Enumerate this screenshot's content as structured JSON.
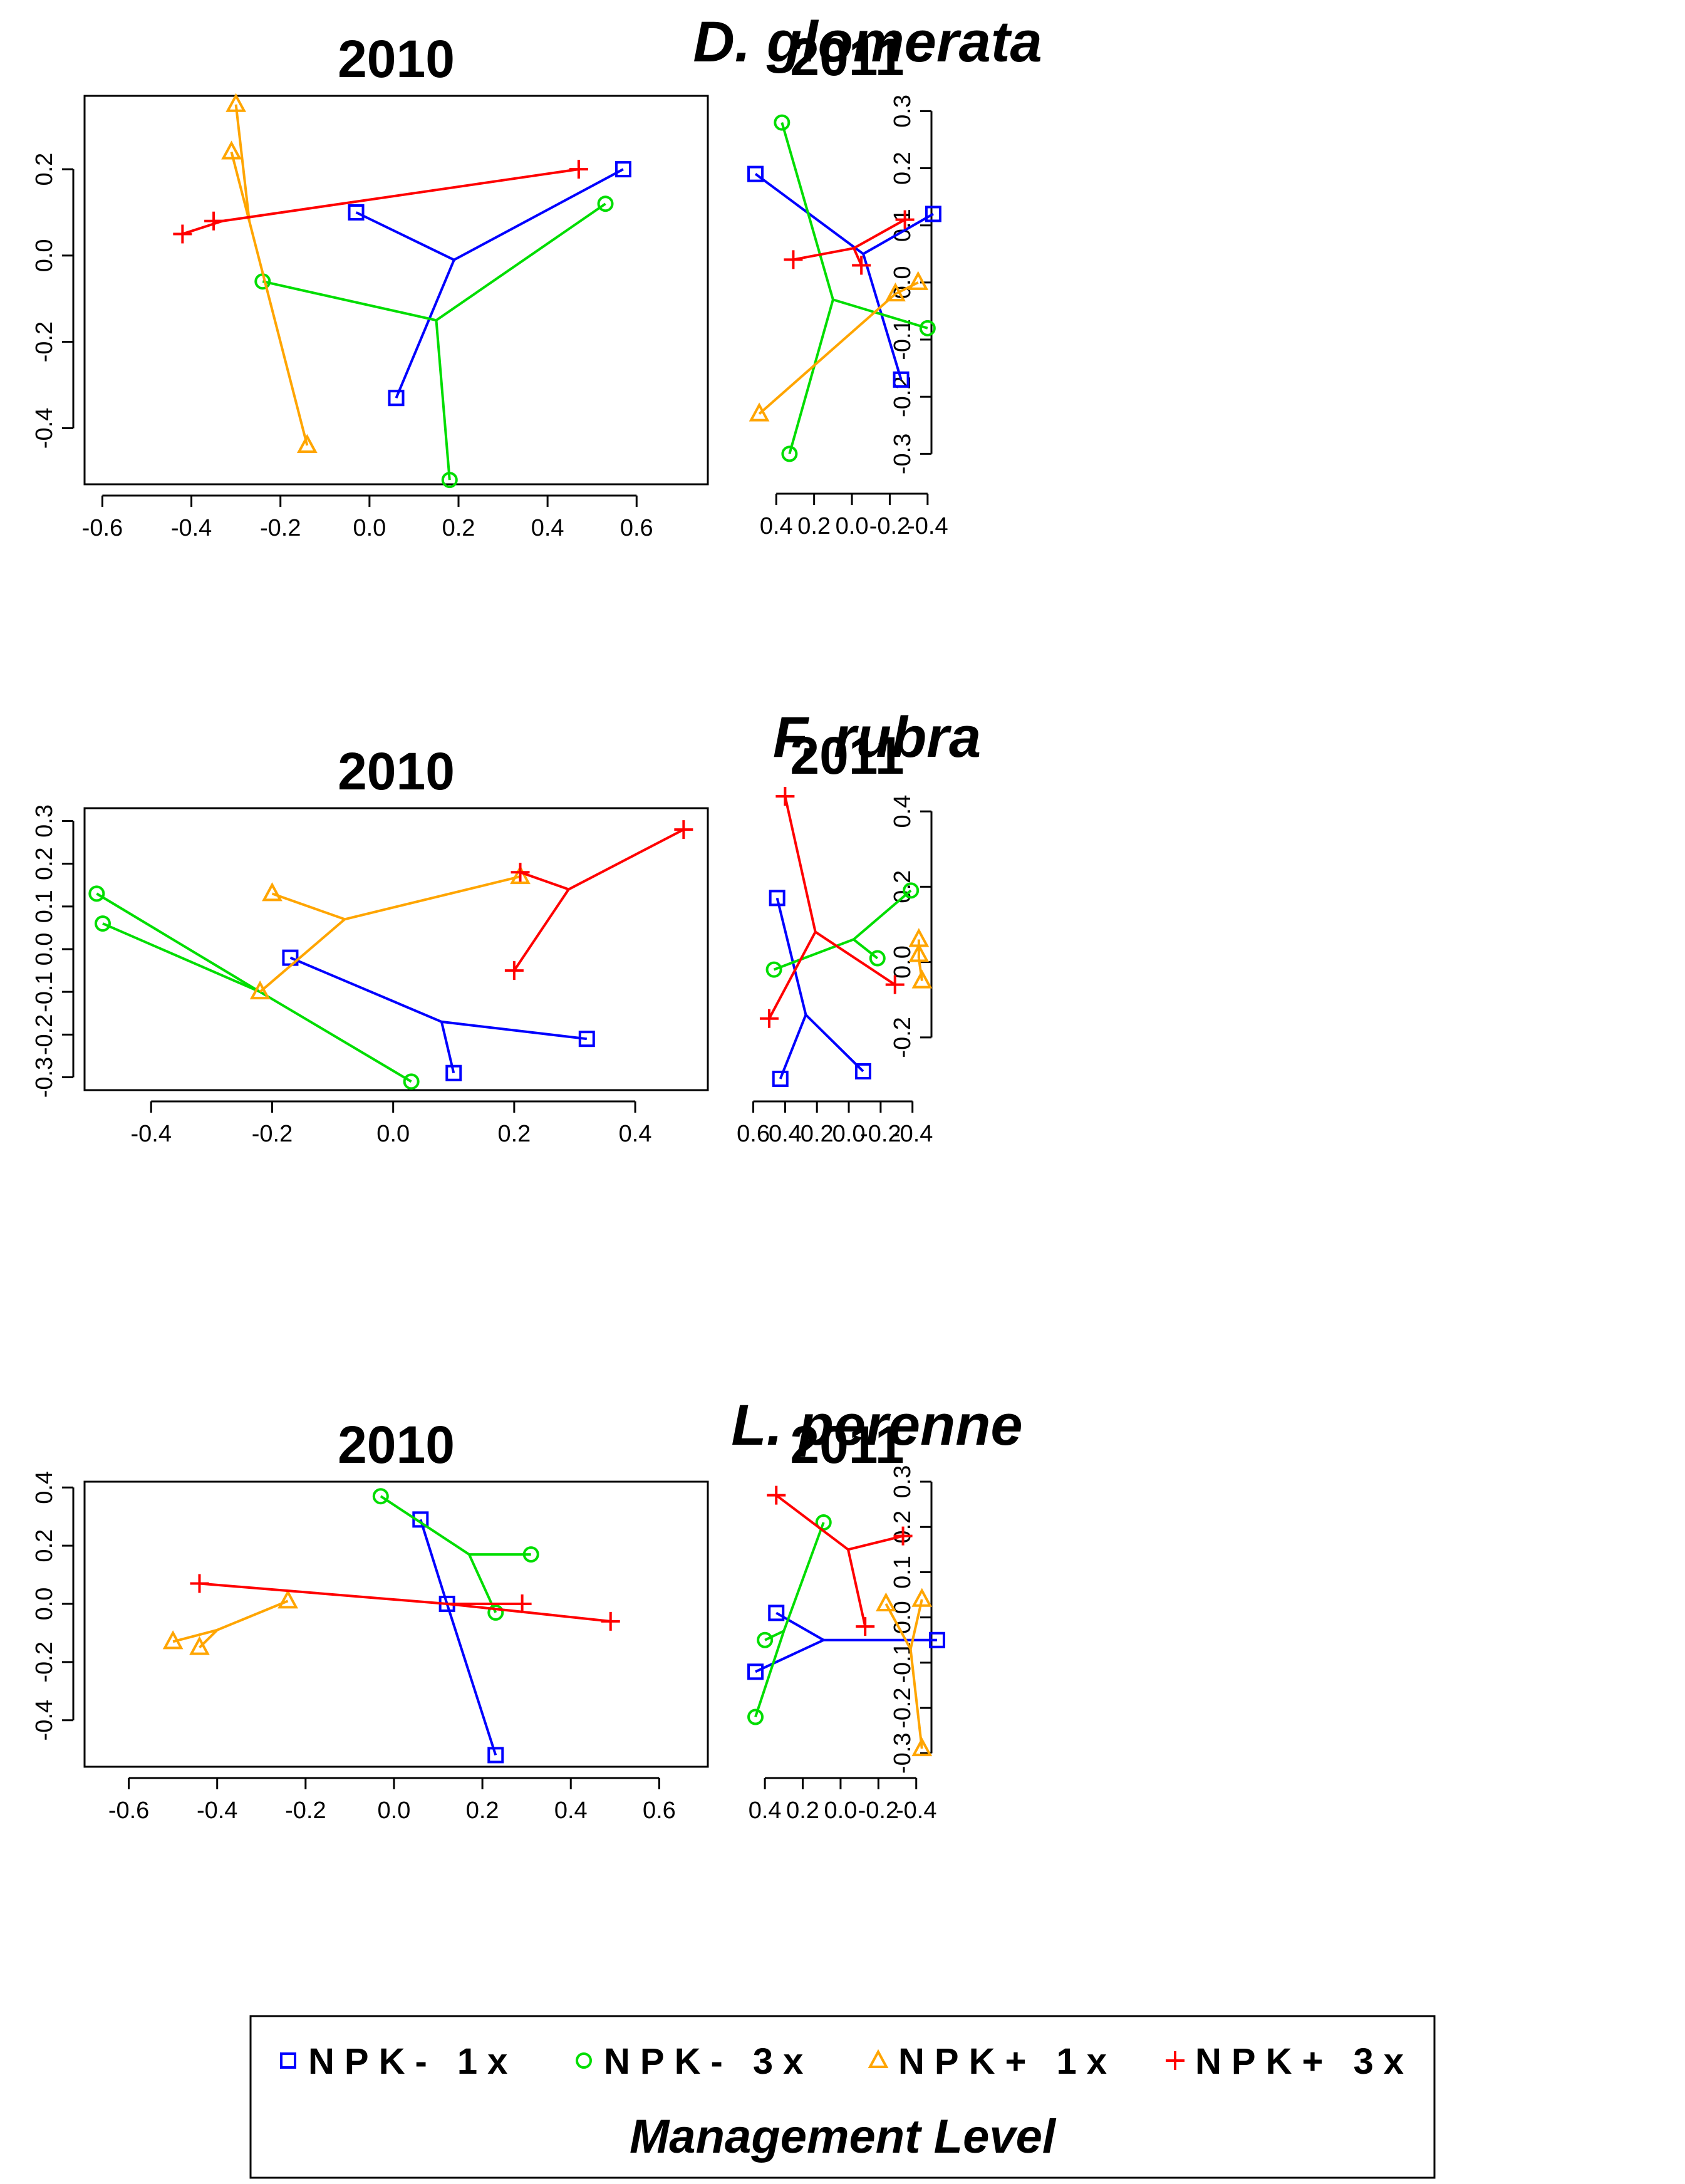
{
  "figure": {
    "species_titles": [
      "D. glomerata",
      "F. rubra",
      "L. perenne"
    ],
    "legend": {
      "title": "Management Level",
      "entries": [
        {
          "label": "NPK- 1x",
          "color": "#0000ff",
          "marker": "square"
        },
        {
          "label": "NPK- 3x",
          "color": "#00dd00",
          "marker": "circle"
        },
        {
          "label": "NPK+ 1x",
          "color": "#ffa500",
          "marker": "triangle"
        },
        {
          "label": "NPK+ 3x",
          "color": "#ff0000",
          "marker": "plus"
        }
      ]
    }
  },
  "chart_data": [
    {
      "type": "scatter",
      "title": "2010",
      "species": "D. glomerata",
      "xlim": [
        -0.64,
        0.76
      ],
      "ylim": [
        -0.53,
        0.37
      ],
      "xticks": [
        -0.6,
        -0.4,
        -0.2,
        0.0,
        0.2,
        0.4,
        0.6
      ],
      "yticks": [
        -0.4,
        -0.2,
        0.0,
        0.2
      ],
      "series": [
        {
          "name": "NPK- 1x",
          "centroid": [
            0.19,
            -0.01
          ],
          "points": [
            [
              -0.03,
              0.1
            ],
            [
              0.57,
              0.2
            ],
            [
              0.06,
              -0.33
            ]
          ]
        },
        {
          "name": "NPK- 3x",
          "centroid": [
            0.15,
            -0.15
          ],
          "points": [
            [
              -0.24,
              -0.06
            ],
            [
              0.53,
              0.12
            ],
            [
              0.18,
              -0.52
            ]
          ]
        },
        {
          "name": "NPK+ 1x",
          "centroid": [
            -0.27,
            0.08
          ],
          "points": [
            [
              -0.3,
              0.35
            ],
            [
              -0.31,
              0.24
            ],
            [
              -0.14,
              -0.44
            ]
          ]
        },
        {
          "name": "NPK+ 3x",
          "centroid": [
            -0.33,
            0.08
          ],
          "points": [
            [
              -0.42,
              0.05
            ],
            [
              -0.35,
              0.08
            ],
            [
              0.47,
              0.2
            ]
          ]
        }
      ]
    },
    {
      "type": "scatter",
      "title": "2011",
      "species": "D. glomerata",
      "xlim": [
        -0.48,
        0.53
      ],
      "ylim": [
        -0.35,
        0.33
      ],
      "xticks": [
        -0.4,
        -0.2,
        0.0,
        0.2,
        0.4
      ],
      "yticks": [
        -0.3,
        -0.2,
        -0.1,
        0.0,
        0.1,
        0.2,
        0.3
      ],
      "series": [
        {
          "name": "NPK- 1x",
          "centroid": [
            -0.06,
            0.05
          ],
          "points": [
            [
              -0.43,
              0.12
            ],
            [
              0.51,
              0.19
            ],
            [
              -0.26,
              -0.17
            ]
          ]
        },
        {
          "name": "NPK- 3x",
          "centroid": [
            0.1,
            -0.03
          ],
          "points": [
            [
              -0.4,
              -0.08
            ],
            [
              0.37,
              0.28
            ],
            [
              0.33,
              -0.3
            ]
          ]
        },
        {
          "name": "NPK+ 1x",
          "centroid": [
            -0.23,
            -0.02
          ],
          "points": [
            [
              -0.35,
              0.0
            ],
            [
              -0.23,
              -0.02
            ],
            [
              0.49,
              -0.23
            ]
          ]
        },
        {
          "name": "NPK+ 3x",
          "centroid": [
            -0.01,
            0.06
          ],
          "points": [
            [
              -0.28,
              0.11
            ],
            [
              -0.05,
              0.03
            ],
            [
              0.31,
              0.04
            ]
          ]
        }
      ]
    },
    {
      "type": "scatter",
      "title": "2010",
      "species": "F. rubra",
      "xlim": [
        -0.51,
        0.52
      ],
      "ylim": [
        -0.33,
        0.33
      ],
      "xticks": [
        -0.4,
        -0.2,
        0.0,
        0.2,
        0.4
      ],
      "yticks": [
        -0.3,
        -0.2,
        -0.1,
        0.0,
        0.1,
        0.2,
        0.3
      ],
      "series": [
        {
          "name": "NPK- 1x",
          "centroid": [
            0.08,
            -0.17
          ],
          "points": [
            [
              -0.17,
              -0.02
            ],
            [
              0.32,
              -0.21
            ],
            [
              0.1,
              -0.29
            ]
          ]
        },
        {
          "name": "NPK- 3x",
          "centroid": [
            -0.22,
            -0.1
          ],
          "points": [
            [
              -0.49,
              0.13
            ],
            [
              -0.48,
              0.06
            ],
            [
              0.03,
              -0.31
            ]
          ]
        },
        {
          "name": "NPK+ 1x",
          "centroid": [
            -0.08,
            0.07
          ],
          "points": [
            [
              -0.2,
              0.13
            ],
            [
              -0.22,
              -0.1
            ],
            [
              0.21,
              0.17
            ]
          ]
        },
        {
          "name": "NPK+ 3x",
          "centroid": [
            0.29,
            0.14
          ],
          "points": [
            [
              0.48,
              0.28
            ],
            [
              0.21,
              0.18
            ],
            [
              0.2,
              -0.05
            ]
          ]
        }
      ]
    },
    {
      "type": "scatter",
      "title": "2011",
      "species": "F. rubra",
      "xlim": [
        -0.59,
        0.61
      ],
      "ylim": [
        -0.34,
        0.45
      ],
      "xticks": [
        -0.4,
        -0.2,
        0.0,
        0.2,
        0.4,
        0.6
      ],
      "yticks": [
        -0.2,
        0.0,
        0.2,
        0.4
      ],
      "series": [
        {
          "name": "NPK- 1x",
          "centroid": [
            0.27,
            -0.14
          ],
          "points": [
            [
              0.45,
              0.17
            ],
            [
              -0.09,
              -0.29
            ],
            [
              0.43,
              -0.31
            ]
          ]
        },
        {
          "name": "NPK- 3x",
          "centroid": [
            -0.03,
            0.06
          ],
          "points": [
            [
              -0.39,
              0.19
            ],
            [
              -0.18,
              0.01
            ],
            [
              0.47,
              -0.02
            ]
          ]
        },
        {
          "name": "NPK+ 1x",
          "centroid": [
            -0.44,
            0.01
          ],
          "points": [
            [
              -0.44,
              0.06
            ],
            [
              -0.44,
              0.02
            ],
            [
              -0.46,
              -0.05
            ]
          ]
        },
        {
          "name": "NPK+ 3x",
          "centroid": [
            0.21,
            0.08
          ],
          "points": [
            [
              0.4,
              0.44
            ],
            [
              -0.29,
              -0.06
            ],
            [
              0.5,
              -0.15
            ]
          ]
        }
      ]
    },
    {
      "type": "scatter",
      "title": "2010",
      "species": "L. perenne",
      "xlim": [
        -0.7,
        0.71
      ],
      "ylim": [
        -0.56,
        0.42
      ],
      "xticks": [
        -0.6,
        -0.4,
        -0.2,
        0.0,
        0.2,
        0.4,
        0.6
      ],
      "yticks": [
        -0.4,
        -0.2,
        0.0,
        0.2,
        0.4
      ],
      "series": [
        {
          "name": "NPK- 1x",
          "centroid": [
            0.12,
            0.0
          ],
          "points": [
            [
              0.06,
              0.29
            ],
            [
              0.23,
              -0.52
            ],
            [
              0.12,
              0.0
            ]
          ]
        },
        {
          "name": "NPK- 3x",
          "centroid": [
            0.17,
            0.17
          ],
          "points": [
            [
              -0.03,
              0.37
            ],
            [
              0.31,
              0.17
            ],
            [
              0.23,
              -0.03
            ]
          ]
        },
        {
          "name": "NPK+ 1x",
          "centroid": [
            -0.4,
            -0.09
          ],
          "points": [
            [
              -0.5,
              -0.13
            ],
            [
              -0.44,
              -0.15
            ],
            [
              -0.24,
              0.01
            ]
          ]
        },
        {
          "name": "NPK+ 3x",
          "centroid": [
            0.12,
            0.0
          ],
          "points": [
            [
              -0.44,
              0.07
            ],
            [
              0.29,
              0.0
            ],
            [
              0.49,
              -0.06
            ]
          ]
        }
      ]
    },
    {
      "type": "scatter",
      "title": "2011",
      "species": "L. perenne",
      "xlim": [
        -0.54,
        0.47
      ],
      "ylim": [
        -0.33,
        0.3
      ],
      "xticks": [
        -0.4,
        -0.2,
        0.0,
        0.2,
        0.4
      ],
      "yticks": [
        -0.3,
        -0.2,
        -0.1,
        0.0,
        0.1,
        0.2,
        0.3
      ],
      "series": [
        {
          "name": "NPK- 1x",
          "centroid": [
            0.09,
            -0.05
          ],
          "points": [
            [
              -0.51,
              -0.05
            ],
            [
              0.34,
              0.01
            ],
            [
              0.45,
              -0.12
            ]
          ]
        },
        {
          "name": "NPK- 3x",
          "centroid": [
            0.3,
            -0.03
          ],
          "points": [
            [
              0.09,
              0.21
            ],
            [
              0.4,
              -0.05
            ],
            [
              0.45,
              -0.22
            ]
          ]
        },
        {
          "name": "NPK+ 1x",
          "centroid": [
            -0.37,
            -0.07
          ],
          "points": [
            [
              -0.43,
              0.04
            ],
            [
              -0.24,
              0.03
            ],
            [
              -0.43,
              -0.29
            ]
          ]
        },
        {
          "name": "NPK+ 3x",
          "centroid": [
            -0.04,
            0.15
          ],
          "points": [
            [
              -0.33,
              0.18
            ],
            [
              0.34,
              0.27
            ],
            [
              -0.13,
              -0.02
            ]
          ]
        }
      ]
    }
  ]
}
